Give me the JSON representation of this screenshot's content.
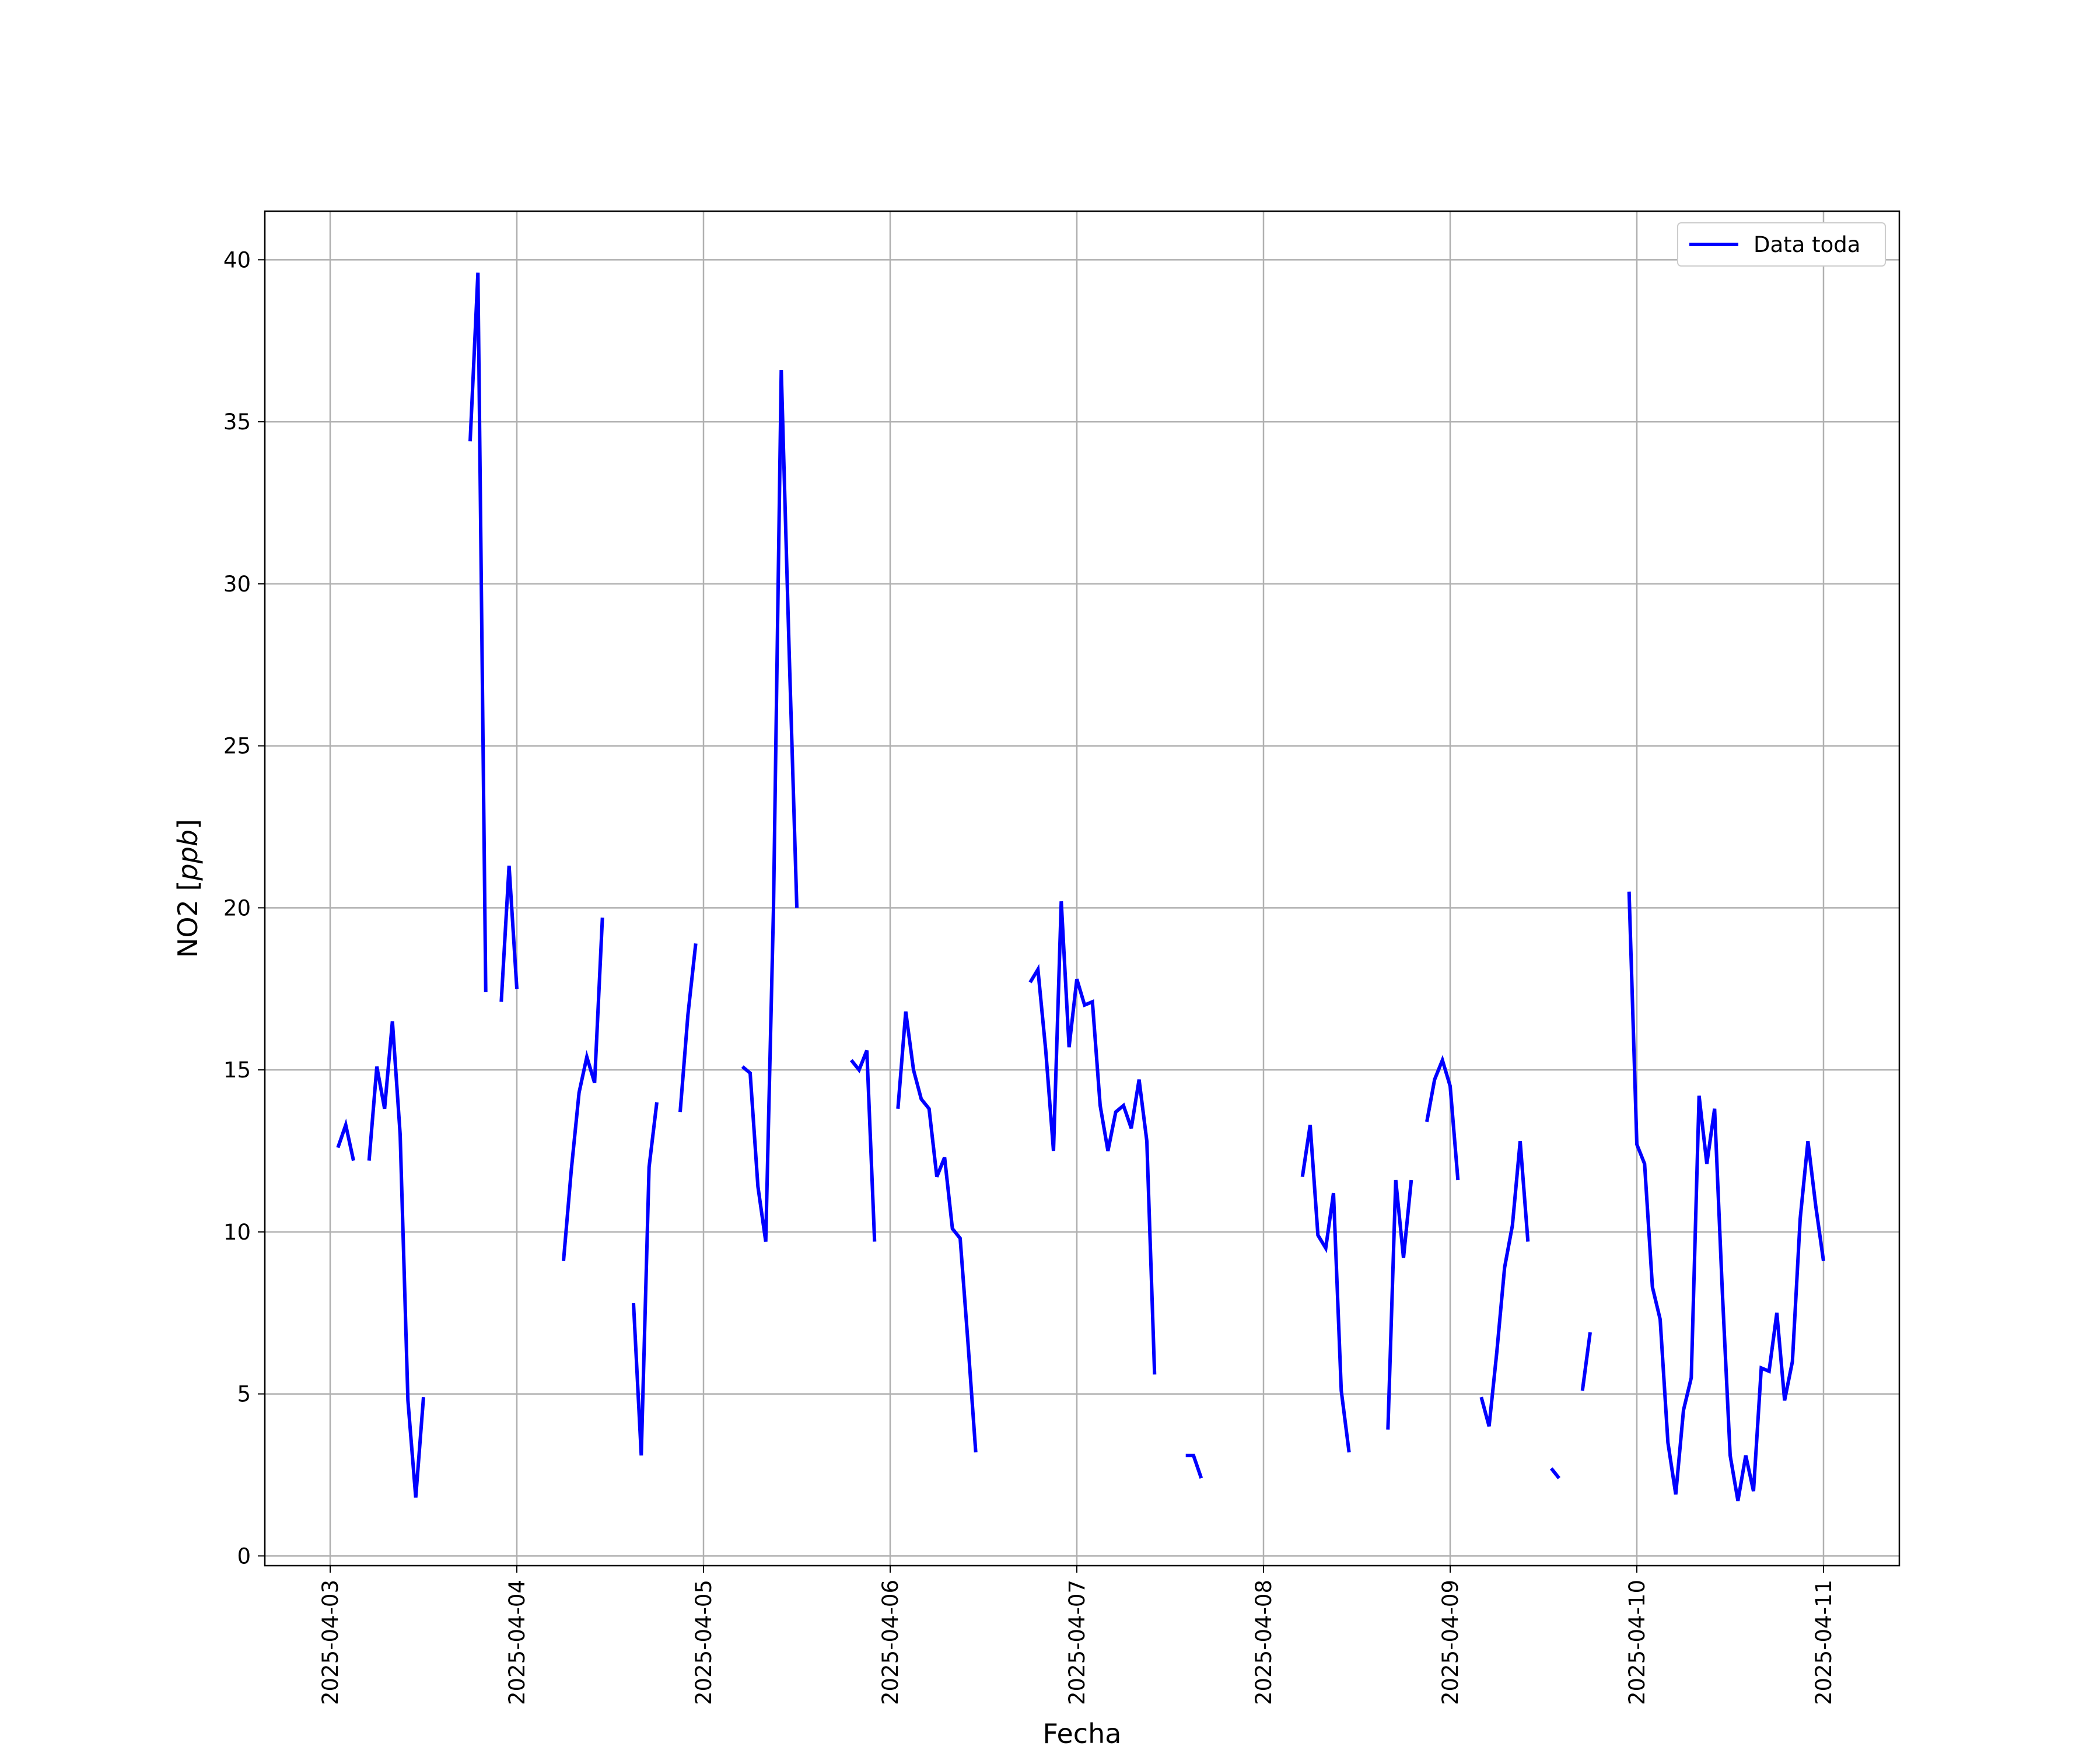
{
  "chart_data": {
    "type": "line",
    "xlabel": "Fecha",
    "ylabel_text": "NO2 [",
    "ylabel_unit": "ppb",
    "ylabel_close": "]",
    "ylim": [
      -0.3,
      41.5
    ],
    "x_tick_labels": [
      "2025-04-03",
      "2025-04-04",
      "2025-04-05",
      "2025-04-06",
      "2025-04-07",
      "2025-04-08",
      "2025-04-09",
      "2025-04-10",
      "2025-04-11"
    ],
    "y_ticks": [
      0,
      5,
      10,
      15,
      20,
      25,
      30,
      35,
      40
    ],
    "grid": true,
    "legend_position": "top-right",
    "series": [
      {
        "name": "Data toda",
        "color": "#0000ff",
        "segments": [
          [
            [
              "2025-04-03 01:00",
              12.6
            ],
            [
              "2025-04-03 02:00",
              13.3
            ],
            [
              "2025-04-03 03:00",
              12.2
            ]
          ],
          [
            [
              "2025-04-03 05:00",
              12.2
            ],
            [
              "2025-04-03 06:00",
              15.1
            ],
            [
              "2025-04-03 07:00",
              13.8
            ],
            [
              "2025-04-03 08:00",
              16.5
            ],
            [
              "2025-04-03 09:00",
              13.0
            ],
            [
              "2025-04-03 10:00",
              4.8
            ],
            [
              "2025-04-03 11:00",
              1.8
            ],
            [
              "2025-04-03 12:00",
              4.9
            ]
          ],
          [
            [
              "2025-04-03 18:00",
              34.4
            ],
            [
              "2025-04-03 19:00",
              39.6
            ],
            [
              "2025-04-03 20:00",
              17.4
            ]
          ],
          [
            [
              "2025-04-03 22:00",
              17.1
            ],
            [
              "2025-04-03 23:00",
              21.3
            ],
            [
              "2025-04-04 00:00",
              17.5
            ]
          ],
          [
            [
              "2025-04-04 06:00",
              9.1
            ],
            [
              "2025-04-04 07:00",
              11.9
            ],
            [
              "2025-04-04 08:00",
              14.3
            ],
            [
              "2025-04-04 09:00",
              15.4
            ],
            [
              "2025-04-04 10:00",
              14.6
            ],
            [
              "2025-04-04 11:00",
              19.7
            ]
          ],
          [
            [
              "2025-04-04 15:00",
              7.8
            ],
            [
              "2025-04-04 16:00",
              3.1
            ],
            [
              "2025-04-04 17:00",
              12.0
            ],
            [
              "2025-04-04 18:00",
              14.0
            ]
          ],
          [
            [
              "2025-04-04 21:00",
              13.7
            ],
            [
              "2025-04-04 22:00",
              16.7
            ],
            [
              "2025-04-04 23:00",
              18.9
            ]
          ],
          [
            [
              "2025-04-05 05:00",
              15.1
            ],
            [
              "2025-04-05 06:00",
              14.9
            ],
            [
              "2025-04-05 07:00",
              11.4
            ],
            [
              "2025-04-05 08:00",
              9.7
            ],
            [
              "2025-04-05 09:00",
              20.0
            ],
            [
              "2025-04-05 10:00",
              36.6
            ],
            [
              "2025-04-05 11:00",
              28.0
            ],
            [
              "2025-04-05 12:00",
              20.0
            ]
          ],
          [
            [
              "2025-04-05 19:00",
              15.3
            ],
            [
              "2025-04-05 20:00",
              15.0
            ],
            [
              "2025-04-05 21:00",
              15.6
            ],
            [
              "2025-04-05 22:00",
              9.7
            ]
          ],
          [
            [
              "2025-04-06 01:00",
              13.8
            ],
            [
              "2025-04-06 02:00",
              16.8
            ],
            [
              "2025-04-06 03:00",
              15.0
            ],
            [
              "2025-04-06 04:00",
              14.1
            ],
            [
              "2025-04-06 05:00",
              13.8
            ],
            [
              "2025-04-06 06:00",
              11.7
            ],
            [
              "2025-04-06 07:00",
              12.3
            ],
            [
              "2025-04-06 08:00",
              10.1
            ],
            [
              "2025-04-06 09:00",
              9.8
            ],
            [
              "2025-04-06 10:00",
              6.6
            ],
            [
              "2025-04-06 11:00",
              3.2
            ]
          ],
          [
            [
              "2025-04-06 18:00",
              17.7
            ],
            [
              "2025-04-06 19:00",
              18.1
            ],
            [
              "2025-04-06 20:00",
              15.6
            ],
            [
              "2025-04-06 21:00",
              12.5
            ],
            [
              "2025-04-06 22:00",
              20.2
            ],
            [
              "2025-04-06 23:00",
              15.7
            ],
            [
              "2025-04-07 00:00",
              17.8
            ],
            [
              "2025-04-07 01:00",
              17.0
            ],
            [
              "2025-04-07 02:00",
              17.1
            ],
            [
              "2025-04-07 03:00",
              13.9
            ],
            [
              "2025-04-07 04:00",
              12.5
            ],
            [
              "2025-04-07 05:00",
              13.7
            ],
            [
              "2025-04-07 06:00",
              13.9
            ],
            [
              "2025-04-07 07:00",
              13.2
            ],
            [
              "2025-04-07 08:00",
              14.7
            ],
            [
              "2025-04-07 09:00",
              12.8
            ],
            [
              "2025-04-07 10:00",
              5.6
            ]
          ],
          [
            [
              "2025-04-07 14:00",
              3.1
            ],
            [
              "2025-04-07 15:00",
              3.1
            ],
            [
              "2025-04-07 16:00",
              2.4
            ]
          ],
          [
            [
              "2025-04-08 05:00",
              11.7
            ],
            [
              "2025-04-08 06:00",
              13.3
            ],
            [
              "2025-04-08 07:00",
              9.9
            ],
            [
              "2025-04-08 08:00",
              9.5
            ],
            [
              "2025-04-08 09:00",
              11.2
            ],
            [
              "2025-04-08 10:00",
              5.1
            ],
            [
              "2025-04-08 11:00",
              3.2
            ]
          ],
          [
            [
              "2025-04-08 16:00",
              3.9
            ],
            [
              "2025-04-08 17:00",
              11.6
            ],
            [
              "2025-04-08 18:00",
              9.2
            ],
            [
              "2025-04-08 19:00",
              11.6
            ]
          ],
          [
            [
              "2025-04-08 21:00",
              13.4
            ],
            [
              "2025-04-08 22:00",
              14.7
            ],
            [
              "2025-04-08 23:00",
              15.3
            ],
            [
              "2025-04-09 00:00",
              14.5
            ],
            [
              "2025-04-09 01:00",
              11.6
            ]
          ],
          [
            [
              "2025-04-09 04:00",
              4.9
            ],
            [
              "2025-04-09 05:00",
              4.0
            ],
            [
              "2025-04-09 06:00",
              6.3
            ],
            [
              "2025-04-09 07:00",
              8.9
            ],
            [
              "2025-04-09 08:00",
              10.2
            ],
            [
              "2025-04-09 09:00",
              12.8
            ],
            [
              "2025-04-09 10:00",
              9.7
            ]
          ],
          [
            [
              "2025-04-09 13:00",
              2.7
            ],
            [
              "2025-04-09 14:00",
              2.4
            ]
          ],
          [
            [
              "2025-04-09 17:00",
              5.1
            ],
            [
              "2025-04-09 18:00",
              6.9
            ]
          ],
          [
            [
              "2025-04-09 23:00",
              20.5
            ],
            [
              "2025-04-10 00:00",
              12.7
            ],
            [
              "2025-04-10 01:00",
              12.1
            ],
            [
              "2025-04-10 02:00",
              8.3
            ],
            [
              "2025-04-10 03:00",
              7.3
            ],
            [
              "2025-04-10 04:00",
              3.5
            ],
            [
              "2025-04-10 05:00",
              1.9
            ],
            [
              "2025-04-10 06:00",
              4.5
            ],
            [
              "2025-04-10 07:00",
              5.5
            ],
            [
              "2025-04-10 08:00",
              14.2
            ],
            [
              "2025-04-10 09:00",
              12.1
            ],
            [
              "2025-04-10 10:00",
              13.8
            ],
            [
              "2025-04-10 11:00",
              8.1
            ],
            [
              "2025-04-10 12:00",
              3.1
            ],
            [
              "2025-04-10 13:00",
              1.7
            ],
            [
              "2025-04-10 14:00",
              3.1
            ],
            [
              "2025-04-10 15:00",
              2.0
            ],
            [
              "2025-04-10 16:00",
              5.8
            ],
            [
              "2025-04-10 17:00",
              5.7
            ],
            [
              "2025-04-10 18:00",
              7.5
            ],
            [
              "2025-04-10 19:00",
              4.8
            ],
            [
              "2025-04-10 20:00",
              6.0
            ],
            [
              "2025-04-10 21:00",
              10.4
            ],
            [
              "2025-04-10 22:00",
              12.8
            ],
            [
              "2025-04-10 23:00",
              10.8
            ],
            [
              "2025-04-11 00:00",
              9.1
            ]
          ]
        ]
      }
    ]
  }
}
